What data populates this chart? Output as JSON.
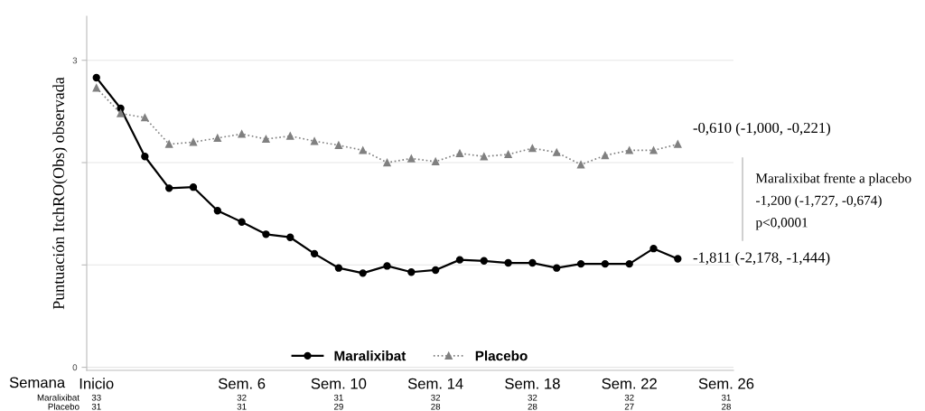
{
  "chart_data": {
    "type": "line",
    "ylabel": "Puntuación ItchRO(Obs) observada",
    "xlabel": "Semana",
    "x": [
      0,
      1,
      2,
      3,
      4,
      5,
      6,
      7,
      8,
      9,
      10,
      11,
      12,
      13,
      14,
      15,
      16,
      17,
      18,
      19,
      20,
      21,
      22,
      23,
      24
    ],
    "series": [
      {
        "name": "Maralixibat",
        "color": "#000000",
        "marker": "circle",
        "line_style": "solid",
        "values": [
          2.83,
          2.53,
          2.06,
          1.75,
          1.76,
          1.53,
          1.42,
          1.3,
          1.27,
          1.11,
          0.97,
          0.92,
          0.99,
          0.93,
          0.95,
          1.05,
          1.04,
          1.02,
          1.02,
          0.97,
          1.01,
          1.01,
          1.01,
          1.16,
          1.06
        ]
      },
      {
        "name": "Placebo",
        "color": "#808080",
        "marker": "triangle",
        "line_style": "dotted",
        "values": [
          2.73,
          2.48,
          2.44,
          2.18,
          2.2,
          2.24,
          2.28,
          2.23,
          2.26,
          2.21,
          2.17,
          2.12,
          2.0,
          2.04,
          2.01,
          2.09,
          2.06,
          2.08,
          2.14,
          2.1,
          1.98,
          2.07,
          2.12,
          2.12,
          2.18
        ]
      }
    ],
    "xlim": [
      -0.4,
      26.3
    ],
    "xticks": [
      {
        "value": 0,
        "label": "Inicio"
      },
      {
        "value": 6,
        "label": "Sem. 6"
      },
      {
        "value": 10,
        "label": "Sem. 10"
      },
      {
        "value": 14,
        "label": "Sem. 14"
      },
      {
        "value": 18,
        "label": "Sem. 18"
      },
      {
        "value": 22,
        "label": "Sem. 22"
      },
      {
        "value": 26,
        "label": "Sem. 26"
      }
    ],
    "ylim": [
      -0.03,
      3.43
    ],
    "yticks": [
      0,
      {
        "value": 1,
        "label": null
      },
      {
        "value": 2,
        "label": null
      },
      3
    ],
    "grid": "y",
    "legend": "bottom",
    "annotations": [
      "-1,811 (-2,178, -1,444)",
      "-0,610 (-1,000, -0,221)",
      "Maralixibat frente a placebo\n-1,200 (-1,727, -0,674)\np<0,0001",
      "Maralixibat",
      "33",
      "32",
      "31",
      "32",
      "32",
      "32",
      "31",
      "Placebo",
      "31",
      "31",
      "29",
      "28",
      "28",
      "27",
      "28"
    ]
  }
}
